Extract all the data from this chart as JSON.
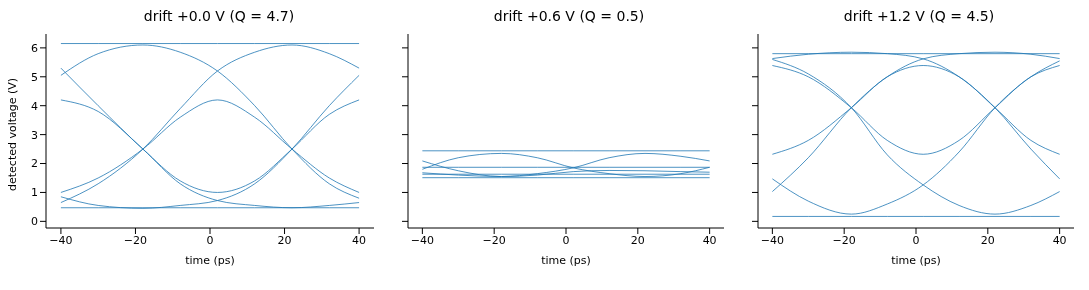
{
  "chart_data": [
    {
      "type": "line",
      "title": "drift +0.0 V (Q = 4.7)",
      "xlabel": "time (ps)",
      "ylabel": "detected voltage (V)",
      "x": [
        -40,
        -30,
        -18,
        -8,
        2,
        12,
        22,
        32,
        40
      ],
      "xlim": [
        -44,
        44
      ],
      "xticks": [
        -40,
        -20,
        0,
        20,
        40
      ],
      "ylim": [
        -0.23,
        6.48
      ],
      "yticks": [
        0,
        1,
        2,
        3,
        4,
        5,
        6
      ],
      "grid": false,
      "marker": "none",
      "line_style": "solid",
      "series": [
        {
          "color": "#1f77b4",
          "values": [
            6.15,
            6.15,
            6.15,
            6.15,
            6.15,
            6.15,
            6.15,
            6.15,
            6.15
          ]
        },
        {
          "color": "#1f77b4",
          "values": [
            0.47,
            0.47,
            0.47,
            0.47,
            0.47,
            0.47,
            0.47,
            0.47,
            0.47
          ]
        },
        {
          "color": "#1f77b4",
          "values": [
            5.05,
            5.8,
            6.1,
            5.85,
            5.2,
            4.0,
            2.5,
            1.3,
            0.8
          ]
        },
        {
          "color": "#1f77b4",
          "values": [
            0.65,
            1.3,
            2.5,
            3.9,
            5.2,
            5.85,
            6.1,
            5.8,
            5.3
          ]
        },
        {
          "color": "#1f77b4",
          "values": [
            5.3,
            4.0,
            2.5,
            1.4,
            1.0,
            1.4,
            2.5,
            3.7,
            4.2
          ]
        },
        {
          "color": "#1f77b4",
          "values": [
            4.2,
            3.8,
            2.5,
            1.3,
            0.72,
            0.55,
            0.47,
            0.55,
            0.65
          ]
        },
        {
          "color": "#1f77b4",
          "values": [
            1.0,
            1.5,
            2.5,
            3.6,
            4.2,
            3.6,
            2.5,
            1.5,
            1.0
          ]
        },
        {
          "color": "#1f77b4",
          "values": [
            0.85,
            0.55,
            0.45,
            0.55,
            0.72,
            1.3,
            2.5,
            4.0,
            5.05
          ]
        }
      ]
    },
    {
      "type": "line",
      "title": "drift +0.6 V (Q = 0.5)",
      "xlabel": "time (ps)",
      "x": [
        -40,
        -30,
        -18,
        -8,
        2,
        12,
        22,
        32,
        40
      ],
      "xlim": [
        -44,
        44
      ],
      "xticks": [
        -40,
        -20,
        0,
        20,
        40
      ],
      "ylim": [
        -0.23,
        6.48
      ],
      "yticks": [
        0,
        1,
        2,
        3,
        4,
        5,
        6
      ],
      "tick_labels": "x",
      "grid": false,
      "marker": "none",
      "line_style": "solid",
      "series": [
        {
          "color": "#1f77b4",
          "values": [
            2.44,
            2.44,
            2.44,
            2.44,
            2.44,
            2.44,
            2.44,
            2.44,
            2.44
          ]
        },
        {
          "color": "#1f77b4",
          "values": [
            1.87,
            1.87,
            1.87,
            1.87,
            1.87,
            1.87,
            1.87,
            1.87,
            1.87
          ]
        },
        {
          "color": "#1f77b4",
          "values": [
            1.51,
            1.51,
            1.51,
            1.51,
            1.51,
            1.51,
            1.51,
            1.51,
            1.51
          ]
        },
        {
          "color": "#1f77b4",
          "values": [
            1.63,
            1.63,
            1.63,
            1.63,
            1.63,
            1.63,
            1.63,
            1.63,
            1.63
          ]
        },
        {
          "color": "#1f77b4",
          "values": [
            1.8,
            2.2,
            2.35,
            2.2,
            1.85,
            1.65,
            1.55,
            1.65,
            1.87
          ]
        },
        {
          "color": "#1f77b4",
          "values": [
            2.09,
            1.75,
            1.55,
            1.65,
            1.85,
            2.2,
            2.35,
            2.25,
            2.09
          ]
        },
        {
          "color": "#1f77b4",
          "values": [
            1.68,
            1.6,
            1.55,
            1.6,
            1.72,
            1.76,
            1.75,
            1.72,
            1.7
          ]
        }
      ]
    },
    {
      "type": "line",
      "title": "drift +1.2 V (Q = 4.5)",
      "xlabel": "time (ps)",
      "x": [
        -40,
        -30,
        -18,
        -8,
        2,
        12,
        22,
        32,
        40
      ],
      "xlim": [
        -44,
        44
      ],
      "xticks": [
        -40,
        -20,
        0,
        20,
        40
      ],
      "ylim": [
        -0.23,
        6.48
      ],
      "yticks": [
        0,
        1,
        2,
        3,
        4,
        5,
        6
      ],
      "tick_labels": "x",
      "grid": false,
      "marker": "none",
      "line_style": "solid",
      "series": [
        {
          "color": "#1f77b4",
          "values": [
            5.8,
            5.8,
            5.8,
            5.8,
            5.8,
            5.8,
            5.8,
            5.8,
            5.8
          ]
        },
        {
          "color": "#1f77b4",
          "values": [
            0.17,
            0.17,
            0.17,
            0.17,
            0.17,
            0.17,
            0.17,
            0.17,
            0.17
          ]
        },
        {
          "color": "#1f77b4",
          "values": [
            5.63,
            5.78,
            5.85,
            5.8,
            5.62,
            5.0,
            3.93,
            2.5,
            1.47
          ]
        },
        {
          "color": "#1f77b4",
          "values": [
            1.03,
            2.2,
            3.93,
            5.0,
            5.62,
            5.8,
            5.85,
            5.78,
            5.63
          ]
        },
        {
          "color": "#1f77b4",
          "values": [
            5.39,
            5.0,
            3.93,
            2.8,
            2.32,
            2.8,
            3.93,
            5.0,
            5.39
          ]
        },
        {
          "color": "#1f77b4",
          "values": [
            2.32,
            2.8,
            3.93,
            5.0,
            5.39,
            5.0,
            3.93,
            2.8,
            2.32
          ]
        },
        {
          "color": "#1f77b4",
          "values": [
            5.6,
            5.1,
            3.93,
            2.3,
            1.26,
            0.55,
            0.25,
            0.55,
            1.03
          ]
        },
        {
          "color": "#1f77b4",
          "values": [
            1.47,
            0.7,
            0.25,
            0.6,
            1.26,
            2.4,
            3.93,
            5.0,
            5.55
          ]
        }
      ]
    }
  ]
}
